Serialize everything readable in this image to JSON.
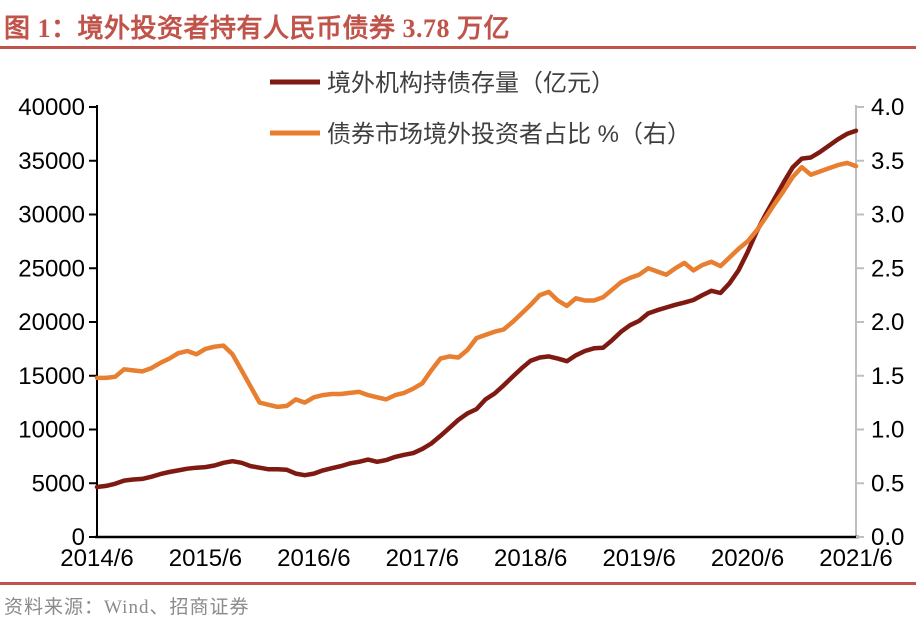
{
  "title": "图 1：境外投资者持有人民币债券 3.78 万亿",
  "source": "资料来源：Wind、招商证券",
  "colors": {
    "accent": "#C0544A",
    "series1": "#7F1A12",
    "series2": "#E87E2F",
    "axis_left": "#000000",
    "axis_right": "#BFBFBF",
    "tick_text": "#000000",
    "source_text": "#8B8B8B"
  },
  "chart_data": {
    "type": "line",
    "title": "图 1：境外投资者持有人民币债券 3.78 万亿",
    "legend_position": "top",
    "grid": false,
    "x_start": "2014/6",
    "frequency": "monthly",
    "x_tick_labels": [
      "2014/6",
      "2015/6",
      "2016/6",
      "2017/6",
      "2018/6",
      "2019/6",
      "2020/6",
      "2021/6"
    ],
    "left_axis": {
      "min": 0,
      "max": 40000,
      "step": 5000,
      "tick_labels": [
        "0",
        "5000",
        "10000",
        "15000",
        "20000",
        "25000",
        "30000",
        "35000",
        "40000"
      ]
    },
    "right_axis": {
      "min": 0,
      "max": 4,
      "step": 0.5,
      "tick_labels": [
        "0.0",
        "0.5",
        "1.0",
        "1.5",
        "2.0",
        "2.5",
        "3.0",
        "3.5",
        "4.0"
      ]
    },
    "series": [
      {
        "name": "境外机构持债存量（亿元）",
        "axis": "left",
        "color": "#7F1A12",
        "values": [
          4650,
          4750,
          4950,
          5250,
          5350,
          5400,
          5600,
          5850,
          6050,
          6200,
          6350,
          6450,
          6500,
          6650,
          6900,
          7050,
          6900,
          6600,
          6450,
          6300,
          6300,
          6250,
          5900,
          5750,
          5900,
          6200,
          6400,
          6600,
          6850,
          7000,
          7200,
          7000,
          7150,
          7450,
          7650,
          7800,
          8200,
          8700,
          9400,
          10150,
          10900,
          11500,
          11900,
          12800,
          13350,
          14100,
          14900,
          15700,
          16400,
          16700,
          16800,
          16600,
          16350,
          16900,
          17300,
          17550,
          17600,
          18300,
          19100,
          19700,
          20100,
          20800,
          21100,
          21350,
          21600,
          21800,
          22050,
          22500,
          22900,
          22700,
          23600,
          24800,
          26500,
          28400,
          30000,
          31500,
          33000,
          34400,
          35200,
          35300,
          35800,
          36400,
          37000,
          37500,
          37800
        ]
      },
      {
        "name": "债券市场境外投资者占比 %（右）",
        "axis": "right",
        "color": "#E87E2F",
        "values": [
          1.48,
          1.48,
          1.49,
          1.56,
          1.55,
          1.54,
          1.57,
          1.62,
          1.66,
          1.71,
          1.73,
          1.7,
          1.75,
          1.77,
          1.78,
          1.7,
          1.55,
          1.4,
          1.25,
          1.23,
          1.21,
          1.22,
          1.28,
          1.25,
          1.3,
          1.32,
          1.33,
          1.33,
          1.34,
          1.35,
          1.32,
          1.3,
          1.28,
          1.32,
          1.34,
          1.38,
          1.43,
          1.55,
          1.66,
          1.68,
          1.67,
          1.74,
          1.85,
          1.88,
          1.91,
          1.93,
          2.0,
          2.08,
          2.16,
          2.25,
          2.28,
          2.2,
          2.15,
          2.22,
          2.2,
          2.2,
          2.23,
          2.3,
          2.37,
          2.41,
          2.44,
          2.5,
          2.47,
          2.44,
          2.5,
          2.55,
          2.48,
          2.53,
          2.56,
          2.52,
          2.6,
          2.68,
          2.75,
          2.85,
          2.97,
          3.1,
          3.22,
          3.35,
          3.44,
          3.37,
          3.4,
          3.43,
          3.46,
          3.48,
          3.45
        ]
      }
    ]
  }
}
